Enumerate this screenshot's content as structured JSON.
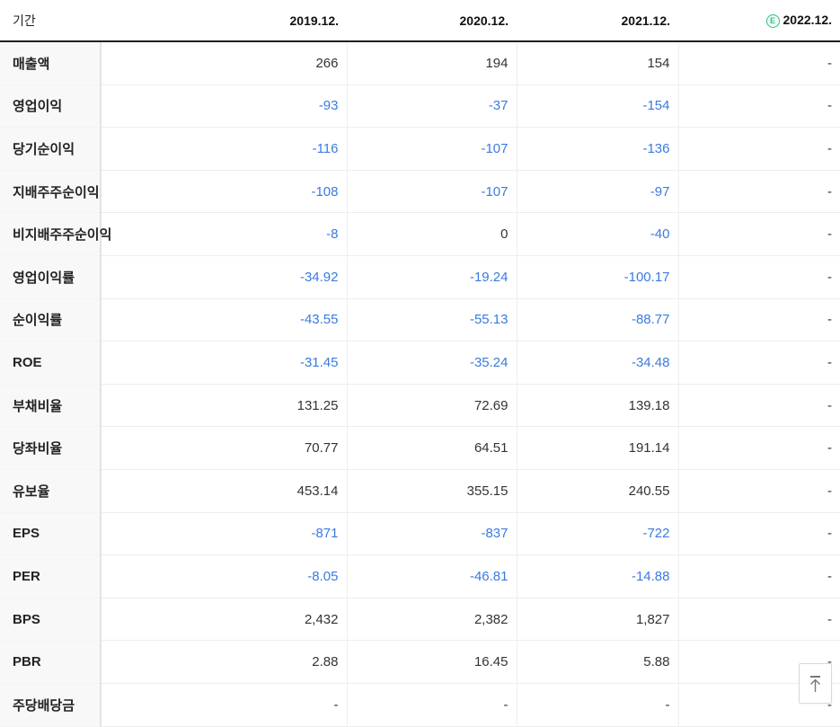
{
  "accent": {
    "negative_value_color": "#3a7ae0",
    "estimate_badge_color": "#35bd83",
    "header_rule_color": "#1f1f1f"
  },
  "table": {
    "period_label": "기간",
    "columns": [
      {
        "label": "2019.12.",
        "estimated": false
      },
      {
        "label": "2020.12.",
        "estimated": false
      },
      {
        "label": "2021.12.",
        "estimated": false
      },
      {
        "label": "2022.12.",
        "estimated": true,
        "badge": "E"
      }
    ],
    "rows": [
      {
        "label": "매출액",
        "values": [
          "266",
          "194",
          "154",
          "-"
        ],
        "blue": [
          false,
          false,
          false,
          false
        ]
      },
      {
        "label": "영업이익",
        "values": [
          "-93",
          "-37",
          "-154",
          "-"
        ],
        "blue": [
          true,
          true,
          true,
          false
        ]
      },
      {
        "label": "당기순이익",
        "values": [
          "-116",
          "-107",
          "-136",
          "-"
        ],
        "blue": [
          true,
          true,
          true,
          false
        ]
      },
      {
        "label": "지배주주순이익",
        "values": [
          "-108",
          "-107",
          "-97",
          "-"
        ],
        "blue": [
          true,
          true,
          true,
          false
        ]
      },
      {
        "label": "비지배주주순이익",
        "values": [
          "-8",
          "0",
          "-40",
          "-"
        ],
        "blue": [
          true,
          false,
          true,
          false
        ]
      },
      {
        "label": "영업이익률",
        "values": [
          "-34.92",
          "-19.24",
          "-100.17",
          "-"
        ],
        "blue": [
          true,
          true,
          true,
          false
        ]
      },
      {
        "label": "순이익률",
        "values": [
          "-43.55",
          "-55.13",
          "-88.77",
          "-"
        ],
        "blue": [
          true,
          true,
          true,
          false
        ]
      },
      {
        "label": "ROE",
        "values": [
          "-31.45",
          "-35.24",
          "-34.48",
          "-"
        ],
        "blue": [
          true,
          true,
          true,
          false
        ]
      },
      {
        "label": "부채비율",
        "values": [
          "131.25",
          "72.69",
          "139.18",
          "-"
        ],
        "blue": [
          false,
          false,
          false,
          false
        ]
      },
      {
        "label": "당좌비율",
        "values": [
          "70.77",
          "64.51",
          "191.14",
          "-"
        ],
        "blue": [
          false,
          false,
          false,
          false
        ]
      },
      {
        "label": "유보율",
        "values": [
          "453.14",
          "355.15",
          "240.55",
          "-"
        ],
        "blue": [
          false,
          false,
          false,
          false
        ]
      },
      {
        "label": "EPS",
        "values": [
          "-871",
          "-837",
          "-722",
          "-"
        ],
        "blue": [
          true,
          true,
          true,
          false
        ]
      },
      {
        "label": "PER",
        "values": [
          "-8.05",
          "-46.81",
          "-14.88",
          "-"
        ],
        "blue": [
          true,
          true,
          true,
          false
        ]
      },
      {
        "label": "BPS",
        "values": [
          "2,432",
          "2,382",
          "1,827",
          "-"
        ],
        "blue": [
          false,
          false,
          false,
          false
        ]
      },
      {
        "label": "PBR",
        "values": [
          "2.88",
          "16.45",
          "5.88",
          "-"
        ],
        "blue": [
          false,
          false,
          false,
          false
        ]
      },
      {
        "label": "주당배당금",
        "values": [
          "-",
          "-",
          "-",
          "-"
        ],
        "blue": [
          false,
          false,
          false,
          false
        ]
      }
    ]
  },
  "scroll_top": {
    "icon": "arrow-up-to-top"
  }
}
